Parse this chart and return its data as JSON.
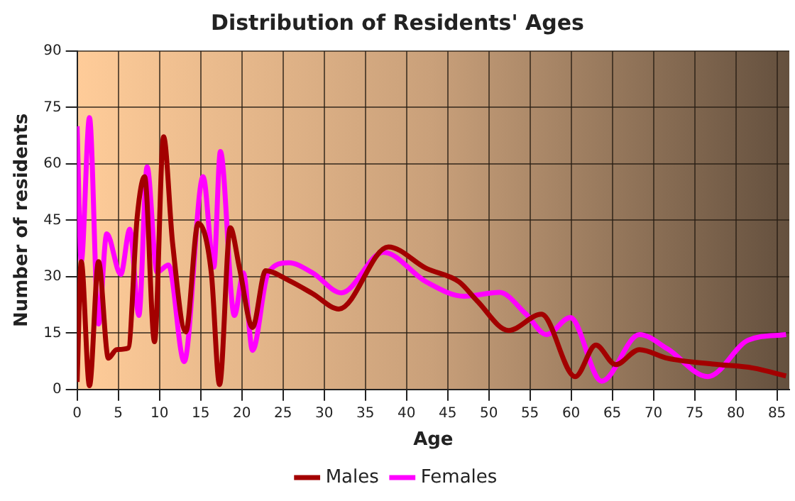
{
  "chart_data": {
    "type": "line",
    "title": "Distribution of Residents' Ages",
    "xlabel": "Age",
    "ylabel": "Number of residents",
    "xlim": [
      0,
      86.5
    ],
    "xticks": [
      0,
      5,
      10,
      15,
      20,
      25,
      30,
      35,
      40,
      45,
      50,
      55,
      60,
      65,
      70,
      75,
      80,
      85
    ],
    "ylim": [
      0,
      90
    ],
    "yticks": [
      0,
      15,
      30,
      45,
      60,
      75,
      90
    ],
    "grid": true,
    "legend": "bottom",
    "marker": "none",
    "line_style": "solid",
    "series": [
      {
        "name": "Males",
        "color": "#a30000",
        "x": [
          0,
          0.5,
          1.5,
          2.6,
          3.8,
          4.8,
          6.2,
          7.3,
          8.2,
          9.4,
          10.5,
          11.6,
          13.2,
          14.7,
          16.3,
          17.3,
          18.6,
          19.7,
          21.3,
          22.9,
          25.7,
          28.6,
          31.8,
          37.8,
          42.4,
          46.4,
          48.6,
          52.4,
          56.4,
          60.5,
          63,
          65.4,
          68.3,
          71.7,
          77.5,
          82.1,
          86.1
        ],
        "values": [
          2,
          34,
          1,
          34,
          8.3,
          10.6,
          11,
          46,
          56.6,
          12.7,
          67.2,
          38.8,
          15.3,
          44.2,
          31,
          1.3,
          43,
          32.5,
          16.5,
          31.6,
          29,
          25.5,
          21.4,
          37.9,
          32.2,
          28.6,
          23.5,
          15.7,
          20,
          3.4,
          11.8,
          6.6,
          10.6,
          8.3,
          6.7,
          5.7,
          3.6
        ]
      },
      {
        "name": "Females",
        "color": "#ff00ff",
        "x": [
          0,
          0.5,
          1.5,
          2.6,
          3.6,
          5.3,
          6.4,
          7.5,
          8.5,
          9.7,
          11.1,
          13,
          15.3,
          16.6,
          17.4,
          19.1,
          20.2,
          21.3,
          23.2,
          25.7,
          28.6,
          32.1,
          37.2,
          42.4,
          47,
          51.3,
          54.5,
          57,
          59.9,
          63.7,
          68.3,
          71.7,
          76.6,
          81.5,
          86.1
        ],
        "values": [
          70,
          34,
          72.3,
          17.4,
          41.4,
          30.6,
          42.6,
          19.7,
          59.2,
          31.2,
          33.1,
          7.4,
          56.6,
          32.5,
          63.3,
          19.7,
          31,
          10.4,
          31,
          33.7,
          31,
          25.7,
          36.5,
          28.6,
          24.8,
          25.8,
          20.1,
          14.6,
          19.1,
          2.2,
          14.6,
          10.8,
          3.4,
          13.1,
          14.6
        ]
      }
    ]
  }
}
